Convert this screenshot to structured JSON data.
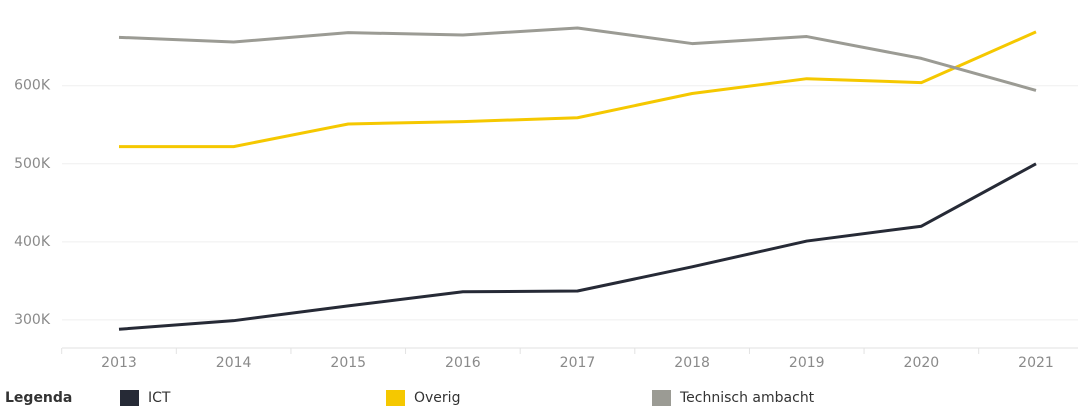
{
  "chart_data": {
    "type": "line",
    "categories": [
      "2013",
      "2014",
      "2015",
      "2016",
      "2017",
      "2018",
      "2019",
      "2020",
      "2021"
    ],
    "series": [
      {
        "name": "ICT",
        "color": "#262a36",
        "values": [
          288000,
          299000,
          318000,
          336000,
          337000,
          368000,
          401000,
          420000,
          500000
        ]
      },
      {
        "name": "Overig",
        "color": "#f5c800",
        "values": [
          522000,
          522000,
          551000,
          554000,
          559000,
          590000,
          609000,
          604000,
          669000
        ]
      },
      {
        "name": "Technisch ambacht",
        "color": "#9b9b94",
        "values": [
          662000,
          656000,
          668000,
          665000,
          674000,
          654000,
          663000,
          635000,
          594000
        ]
      }
    ],
    "ylim": [
      264000,
      697000
    ],
    "yticks": [
      {
        "value": 300000,
        "label": "300K"
      },
      {
        "value": 400000,
        "label": "400K"
      },
      {
        "value": 500000,
        "label": "500K"
      },
      {
        "value": 600000,
        "label": "600K"
      }
    ],
    "grid": true,
    "legend_title": "Legenda",
    "legend_position": "bottom"
  }
}
